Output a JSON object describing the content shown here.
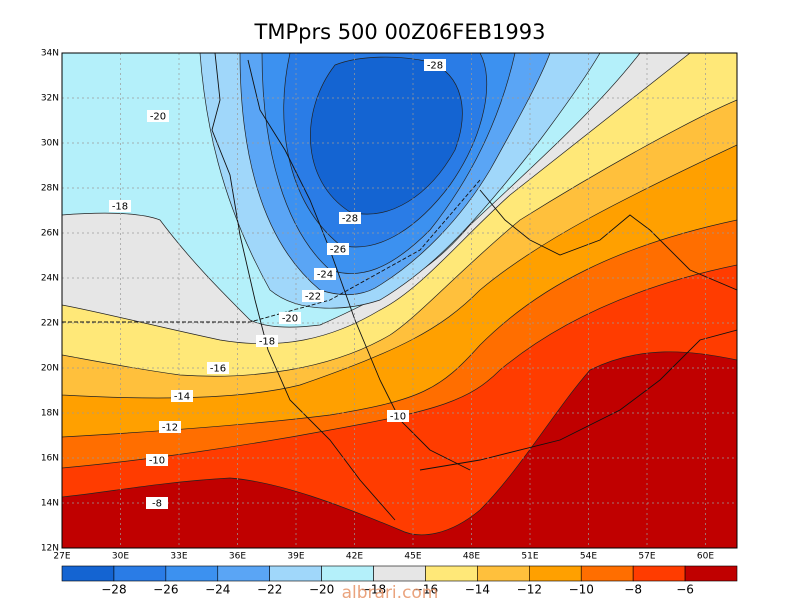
{
  "title": "TMPprs 500 00Z06FEB1993",
  "lat_labels": [
    "34N",
    "32N",
    "30N",
    "28N",
    "26N",
    "24N",
    "22N",
    "20N",
    "18N",
    "16N",
    "14N",
    "12N"
  ],
  "lon_labels": [
    "27E",
    "30E",
    "33E",
    "36E",
    "39E",
    "42E",
    "45E",
    "48E",
    "51E",
    "54E",
    "57E",
    "60E"
  ],
  "contour_labels": [
    "-28",
    "-20",
    "-18",
    "-28",
    "-26",
    "-24",
    "-22",
    "-20",
    "-18",
    "-16",
    "-14",
    "-12",
    "-10",
    "-8",
    "-10"
  ],
  "colorbar_labels": [
    "−28",
    "−26",
    "−24",
    "−22",
    "−20",
    "−18",
    "−16",
    "−14",
    "−12",
    "−10",
    "−8",
    "−6"
  ],
  "watermark": "albrari.com"
}
